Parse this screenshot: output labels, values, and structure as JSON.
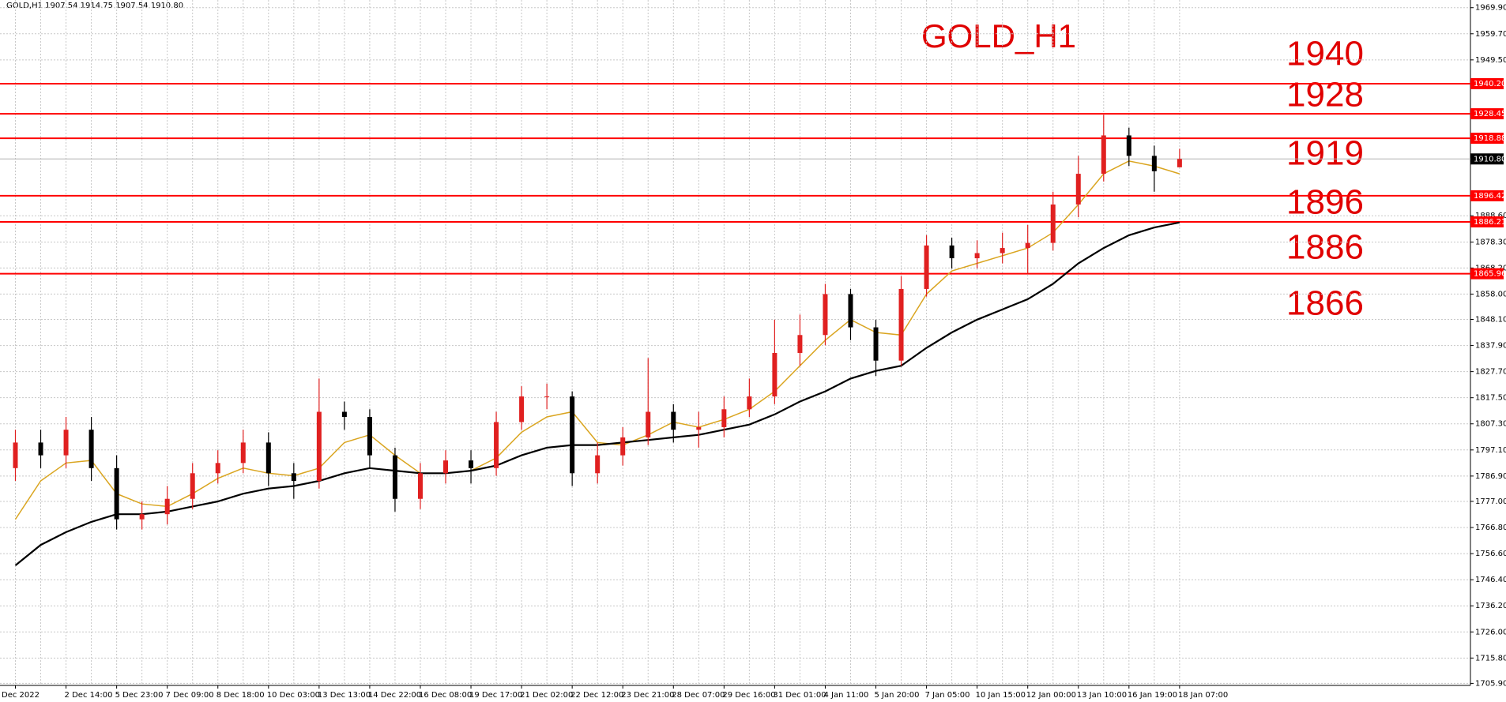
{
  "chart_data": {
    "type": "candlestick",
    "title": "GOLD_H1",
    "header": "GOLD,H1  1907.54 1914.75 1907.54 1910.80",
    "categories": [
      "Dec 2022",
      null,
      "2 Dec 14:00",
      null,
      "5 Dec 23:00",
      null,
      "7 Dec 09:00",
      null,
      "8 Dec 18:00",
      null,
      "10 Dec 03:00",
      null,
      "13 Dec 13:00",
      null,
      "14 Dec 22:00",
      null,
      "16 Dec 08:00",
      null,
      "19 Dec 17:00",
      null,
      "21 Dec 02:00",
      null,
      "22 Dec 12:00",
      null,
      "23 Dec 21:00",
      null,
      "28 Dec 07:00",
      null,
      "29 Dec 16:00",
      null,
      "31 Dec 01:00",
      null,
      "4 Jan 11:00",
      null,
      "5 Jan 20:00",
      null,
      "7 Jan 05:00",
      null,
      "10 Jan 15:00",
      null,
      "12 Jan 00:00",
      null,
      "13 Jan 10:00",
      null,
      "16 Jan 19:00",
      null,
      "18 Jan 07:00"
    ],
    "open": [
      1790,
      1800,
      1795,
      1805,
      1790,
      1770,
      1772,
      1778,
      1788,
      1792,
      1800,
      1788,
      1785,
      1812,
      1810,
      1795,
      1778,
      1788,
      1793,
      1790,
      1808,
      1818,
      1818,
      1788,
      1795,
      1802,
      1812,
      1805,
      1806,
      1813,
      1818,
      1835,
      1842,
      1858,
      1845,
      1832,
      1860,
      1877,
      1872,
      1874,
      1876,
      1878,
      1893,
      1905,
      1920,
      1912,
      1907.54
    ],
    "high": [
      1805,
      1805,
      1810,
      1810,
      1795,
      1777,
      1783,
      1792,
      1797,
      1805,
      1804,
      1792,
      1825,
      1816,
      1813,
      1798,
      1792,
      1797,
      1797,
      1812,
      1822,
      1823,
      1820,
      1800,
      1806,
      1833,
      1815,
      1812,
      1818,
      1825,
      1848,
      1850,
      1862,
      1860,
      1848,
      1865,
      1881,
      1880,
      1879,
      1882,
      1885,
      1898,
      1912,
      1928,
      1923,
      1916,
      1914.75
    ],
    "low": [
      1785,
      1790,
      1790,
      1785,
      1766,
      1766,
      1768,
      1774,
      1784,
      1788,
      1783,
      1778,
      1782,
      1805,
      1790,
      1773,
      1774,
      1784,
      1784,
      1787,
      1805,
      1813,
      1783,
      1784,
      1791,
      1799,
      1800,
      1798,
      1802,
      1810,
      1815,
      1830,
      1838,
      1840,
      1826,
      1830,
      1857,
      1868,
      1868,
      1870,
      1866,
      1875,
      1888,
      1902,
      1908,
      1898,
      1907.54
    ],
    "close": [
      1800,
      1795,
      1805,
      1790,
      1770,
      1772,
      1778,
      1788,
      1792,
      1800,
      1788,
      1785,
      1812,
      1810,
      1795,
      1778,
      1788,
      1793,
      1790,
      1808,
      1818,
      1818,
      1788,
      1795,
      1802,
      1812,
      1805,
      1806,
      1813,
      1818,
      1835,
      1842,
      1858,
      1845,
      1832,
      1860,
      1877,
      1872,
      1874,
      1876,
      1878,
      1893,
      1905,
      1920,
      1912,
      1906,
      1910.8
    ],
    "up_color": "#e02020",
    "down_color": "#000000",
    "series": [
      {
        "color": "#daa520",
        "values": [
          1770,
          1785,
          1792,
          1793,
          1780,
          1776,
          1775,
          1780,
          1786,
          1790,
          1788,
          1787,
          1790,
          1800,
          1803,
          1795,
          1788,
          1788,
          1789,
          1794,
          1804,
          1810,
          1812,
          1800,
          1799,
          1803,
          1808,
          1806,
          1809,
          1813,
          1820,
          1830,
          1840,
          1848,
          1843,
          1842,
          1858,
          1867,
          1870,
          1873,
          1876,
          1882,
          1893,
          1905,
          1910,
          1908,
          1905
        ]
      },
      {
        "color": "#000000",
        "values": [
          1752,
          1760,
          1765,
          1769,
          1772,
          1772,
          1773,
          1775,
          1777,
          1780,
          1782,
          1783,
          1785,
          1788,
          1790,
          1789,
          1788,
          1788,
          1789,
          1791,
          1795,
          1798,
          1799,
          1799,
          1800,
          1801,
          1802,
          1803,
          1805,
          1807,
          1811,
          1816,
          1820,
          1825,
          1828,
          1830,
          1837,
          1843,
          1848,
          1852,
          1856,
          1862,
          1870,
          1876,
          1881,
          1884,
          1886
        ]
      }
    ],
    "ylim": [
      1705.1,
      1972.9
    ],
    "yticks": [
      {
        "value": 1969.9,
        "label": "1969.90"
      },
      {
        "value": 1959.7,
        "label": "1959.70"
      },
      {
        "value": 1949.5,
        "label": "1949.50"
      },
      {
        "value": 1888.6,
        "label": "1888.60"
      },
      {
        "value": 1878.3,
        "label": "1878.30"
      },
      {
        "value": 1868.2,
        "label": "1868.20"
      },
      {
        "value": 1858,
        "label": "1858.00"
      },
      {
        "value": 1848.1,
        "label": "1848.10"
      },
      {
        "value": 1837.9,
        "label": "1837.90"
      },
      {
        "value": 1827.7,
        "label": "1827.70"
      },
      {
        "value": 1817.5,
        "label": "1817.50"
      },
      {
        "value": 1807.3,
        "label": "1807.30"
      },
      {
        "value": 1797.1,
        "label": "1797.10"
      },
      {
        "value": 1786.9,
        "label": "1786.90"
      },
      {
        "value": 1777,
        "label": "1777.00"
      },
      {
        "value": 1766.8,
        "label": "1766.80"
      },
      {
        "value": 1756.6,
        "label": "1756.60"
      },
      {
        "value": 1746.4,
        "label": "1746.40"
      },
      {
        "value": 1736.2,
        "label": "1736.20"
      },
      {
        "value": 1726,
        "label": "1726.00"
      },
      {
        "value": 1715.8,
        "label": "1715.80"
      },
      {
        "value": 1705.9,
        "label": "1705.90"
      }
    ],
    "levels": [
      {
        "value": 1940.2,
        "label": "1940.20",
        "note": "1940"
      },
      {
        "value": 1928.45,
        "label": "1928.45",
        "note": "1928"
      },
      {
        "value": 1918.88,
        "label": "1918.88",
        "note": "1919"
      },
      {
        "value": 1896.42,
        "label": "1896.42",
        "note": "1896"
      },
      {
        "value": 1886.21,
        "label": "1886.21",
        "note": "1886"
      },
      {
        "value": 1865.96,
        "label": "1865.96",
        "note": "1866"
      }
    ],
    "level_color": "#ff0000",
    "current": {
      "value": 1910.8,
      "label": "1910.80"
    },
    "grid": true
  }
}
